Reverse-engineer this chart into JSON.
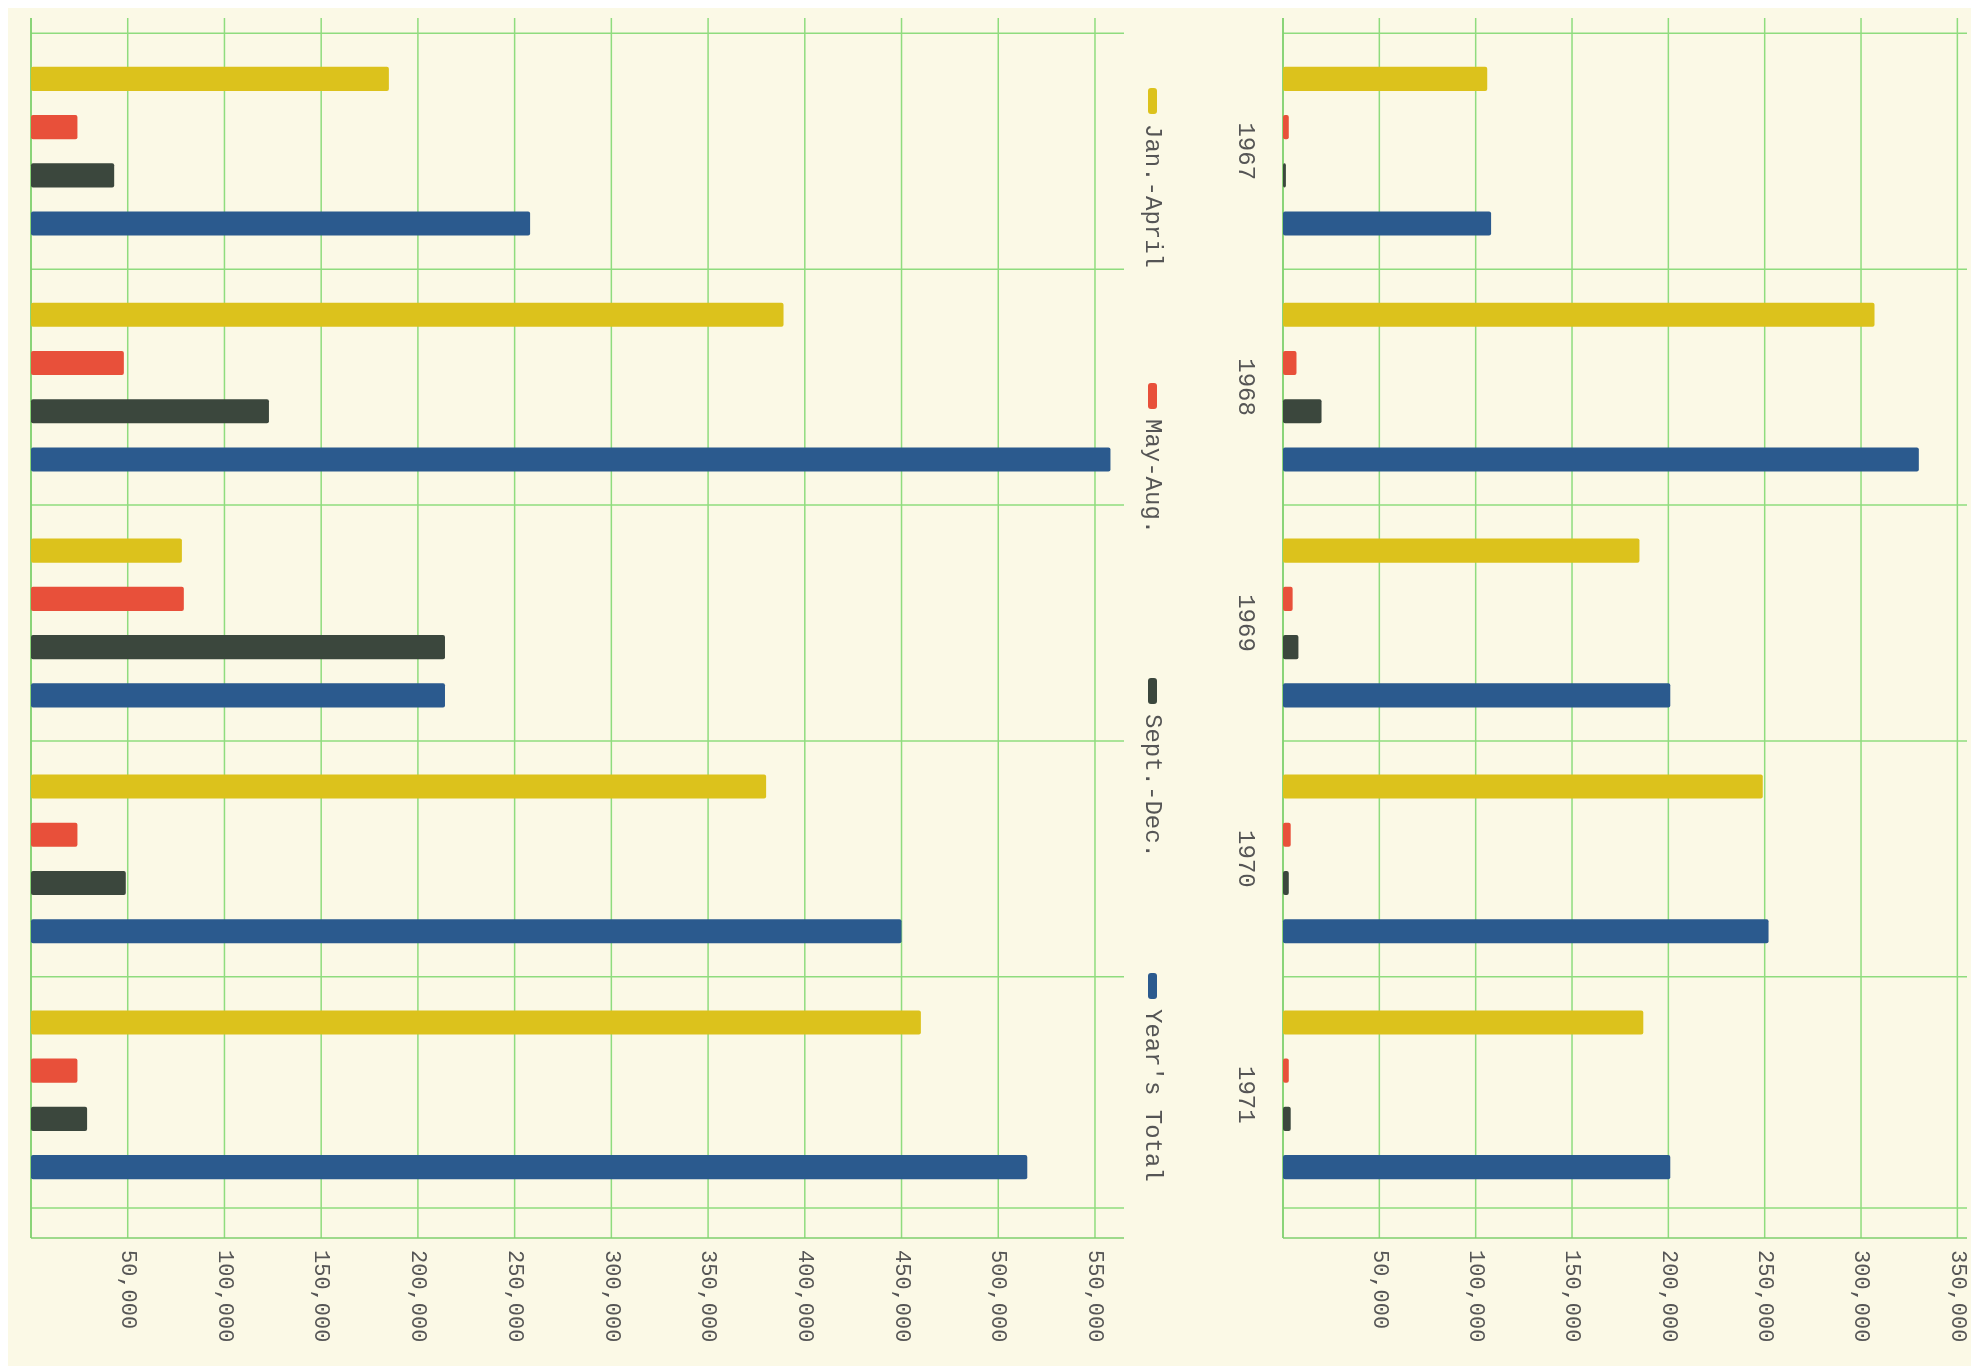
{
  "chart_data": [
    {
      "type": "bar",
      "orientation": "horizontal",
      "categories": [
        null,
        null,
        null,
        null,
        null
      ],
      "xlim": [
        0,
        565000
      ],
      "xticks": [
        {
          "value": 0,
          "label": null
        },
        {
          "value": 50000,
          "label": "50,000"
        },
        {
          "value": 100000,
          "label": "100,000"
        },
        {
          "value": 150000,
          "label": "150,000"
        },
        {
          "value": 200000,
          "label": "200,000"
        },
        {
          "value": 250000,
          "label": "250,000"
        },
        {
          "value": 300000,
          "label": "300,000"
        },
        {
          "value": 350000,
          "label": "350,000"
        },
        {
          "value": 400000,
          "label": "400,000"
        },
        {
          "value": 450000,
          "label": "450,000"
        },
        {
          "value": 500000,
          "label": "500,000"
        },
        {
          "value": 550000,
          "label": "550,000"
        }
      ],
      "grid": true,
      "legend": "right",
      "series": [
        {
          "name": "Jan.-April",
          "color": "#dcc21c",
          "values": [
            185000,
            389000,
            78000,
            380000,
            460000
          ]
        },
        {
          "name": "May-Aug.",
          "color": "#e8503a",
          "values": [
            24000,
            48000,
            79000,
            24000,
            24000
          ]
        },
        {
          "name": "Sept.-Dec.",
          "color": "#3b473d",
          "values": [
            43000,
            123000,
            214000,
            49000,
            29000
          ]
        },
        {
          "name": "Year's Total",
          "color": "#2b5a8e",
          "values": [
            258000,
            558000,
            214000,
            450000,
            515000
          ]
        }
      ]
    },
    {
      "type": "bar",
      "orientation": "horizontal",
      "categories": [
        "1967",
        "1968",
        "1969",
        "1970",
        "1971"
      ],
      "xlim": [
        0,
        355000
      ],
      "xticks": [
        {
          "value": 0,
          "label": null
        },
        {
          "value": 50000,
          "label": "50,000"
        },
        {
          "value": 100000,
          "label": "100,000"
        },
        {
          "value": 150000,
          "label": "150,000"
        },
        {
          "value": 200000,
          "label": "200,000"
        },
        {
          "value": 250000,
          "label": "250,000"
        },
        {
          "value": 300000,
          "label": "300,000"
        },
        {
          "value": 350000,
          "label": "350,000"
        }
      ],
      "grid": true,
      "series": [
        {
          "color": "#dcc21c",
          "values": [
            106000,
            307000,
            185000,
            249000,
            187000
          ]
        },
        {
          "color": "#e8503a",
          "values": [
            3000,
            7000,
            5000,
            4000,
            3000
          ]
        },
        {
          "color": "#3b473d",
          "values": [
            1500,
            20000,
            8000,
            3000,
            4000
          ]
        },
        {
          "color": "#2b5a8e",
          "values": [
            108000,
            330000,
            201000,
            252000,
            201000
          ]
        }
      ]
    }
  ]
}
